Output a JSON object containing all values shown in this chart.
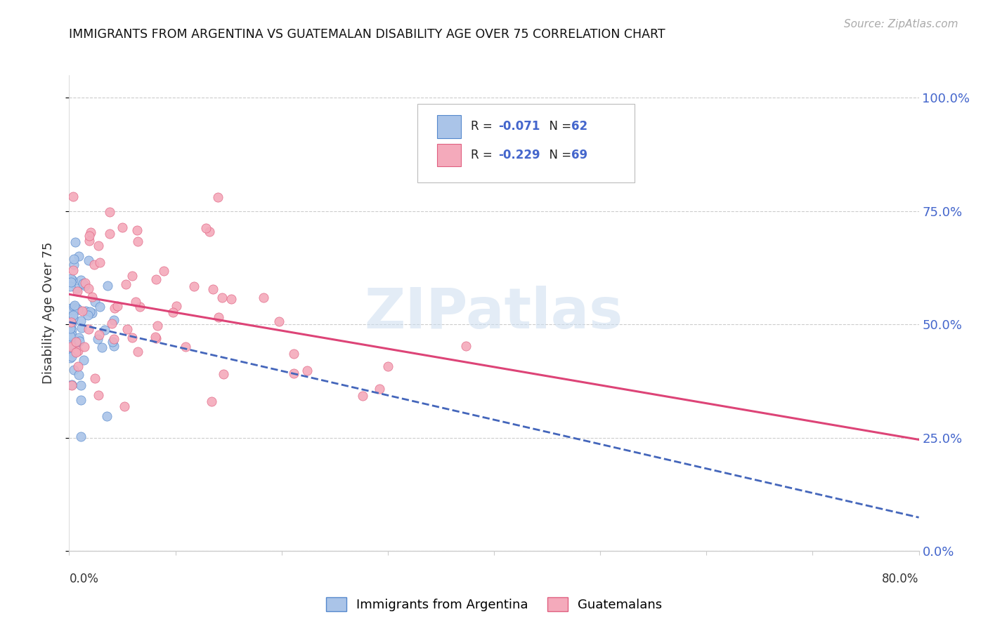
{
  "title": "IMMIGRANTS FROM ARGENTINA VS GUATEMALAN DISABILITY AGE OVER 75 CORRELATION CHART",
  "source": "Source: ZipAtlas.com",
  "ylabel": "Disability Age Over 75",
  "legend_R1": "-0.071",
  "legend_N1": "62",
  "legend_R2": "-0.229",
  "legend_N2": "69",
  "argentina_color": "#aac4e8",
  "guatemala_color": "#f4aabb",
  "argentina_edge_color": "#5588cc",
  "guatemala_edge_color": "#e06080",
  "argentina_trend_color": "#4466bb",
  "guatemala_trend_color": "#dd4477",
  "text_color_dark": "#333333",
  "text_color_blue": "#4466cc",
  "text_color_source": "#aaaaaa",
  "grid_color": "#cccccc",
  "watermark_color": "#ccddf0",
  "xlim": [
    0.0,
    0.8
  ],
  "ylim": [
    0.0,
    1.05
  ],
  "yticks": [
    0.0,
    0.25,
    0.5,
    0.75,
    1.0
  ],
  "ytick_labels": [
    "0.0%",
    "25.0%",
    "50.0%",
    "75.0%",
    "100.0%"
  ],
  "background_color": "#ffffff",
  "argentina_seed": 42,
  "guatemala_seed": 99
}
